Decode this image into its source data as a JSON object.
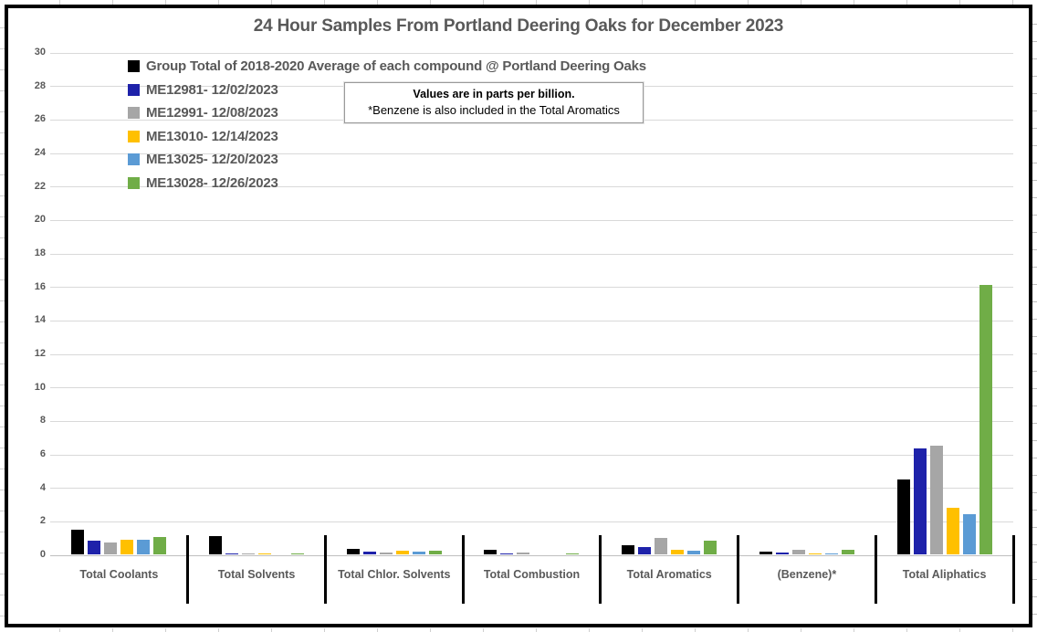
{
  "chart_data": {
    "type": "bar",
    "title": "24 Hour Samples From Portland Deering Oaks for December 2023",
    "annotation": {
      "line1": "Values are in parts per billion.",
      "line2": "*Benzene is also included in the Total Aromatics"
    },
    "categories": [
      "Total Coolants",
      "Total Solvents",
      "Total Chlor. Solvents",
      "Total Combustion",
      "Total Aromatics",
      "(Benzene)*",
      "Total Aliphatics"
    ],
    "series": [
      {
        "name": "Group Total of 2018-2020 Average of each compound @ Portland Deering Oaks",
        "color": "#000000",
        "values": [
          1.5,
          1.1,
          0.35,
          0.25,
          0.55,
          0.15,
          4.5
        ]
      },
      {
        "name": "ME12981- 12/02/2023",
        "color": "#1e22aa",
        "values": [
          0.8,
          0.07,
          0.15,
          0.08,
          0.45,
          0.1,
          6.35
        ]
      },
      {
        "name": "ME12991- 12/08/2023",
        "color": "#a6a6a6",
        "values": [
          0.72,
          0.07,
          0.1,
          0.12,
          1.0,
          0.3,
          6.5
        ]
      },
      {
        "name": "ME13010- 12/14/2023",
        "color": "#ffc000",
        "values": [
          0.88,
          0.07,
          0.2,
          0,
          0.25,
          0.05,
          2.8
        ]
      },
      {
        "name": "ME13025- 12/20/2023",
        "color": "#5b9bd5",
        "values": [
          0.85,
          0,
          0.15,
          0,
          0.2,
          0.05,
          2.4
        ]
      },
      {
        "name": "ME13028- 12/26/2023",
        "color": "#70ad47",
        "values": [
          1.05,
          0.07,
          0.2,
          0.08,
          0.8,
          0.25,
          16.1
        ]
      }
    ],
    "ylim": [
      0,
      30
    ],
    "ytick_step": 2,
    "grid": true,
    "legend_position": "top-left-vertical",
    "value_unit": "parts per billion"
  }
}
